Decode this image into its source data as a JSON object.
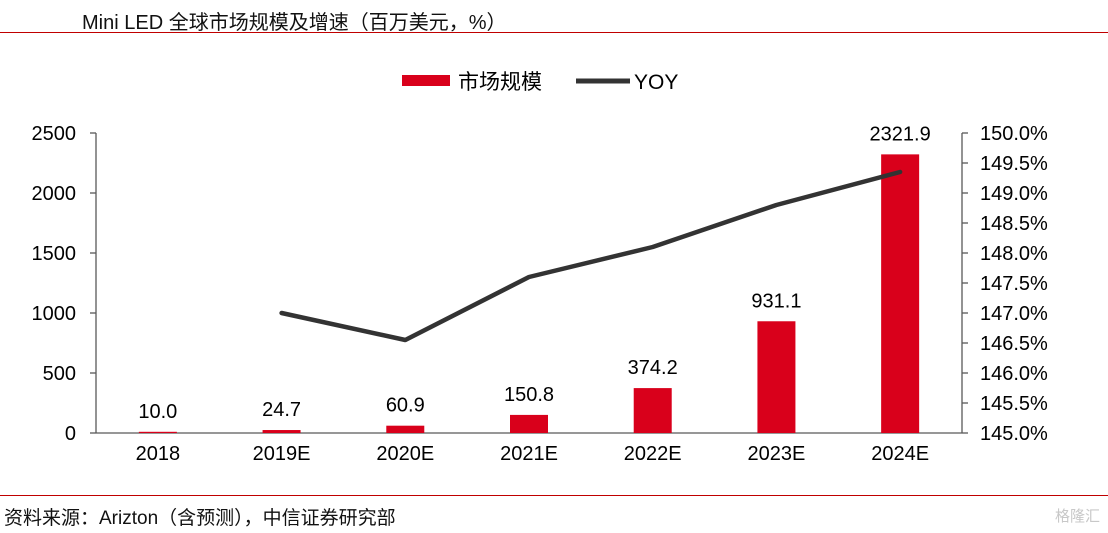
{
  "title": "Mini LED 全球市场规模及增速（百万美元，%）",
  "source": "资料来源：Arizton（含预测），中信证券研究部",
  "watermark": "格隆汇",
  "colors": {
    "bar": "#d9001b",
    "line": "#333333",
    "rule": "#c00000"
  },
  "chart_data": {
    "type": "bar",
    "categories": [
      "2018",
      "2019E",
      "2020E",
      "2021E",
      "2022E",
      "2023E",
      "2024E"
    ],
    "series": [
      {
        "name": "市场规模",
        "type": "bar",
        "axis": "left",
        "values": [
          10.0,
          24.7,
          60.9,
          150.8,
          374.2,
          931.1,
          2321.9
        ],
        "labels": [
          "10.0",
          "24.7",
          "60.9",
          "150.8",
          "374.2",
          "931.1",
          "2321.9"
        ]
      },
      {
        "name": "YOY",
        "type": "line",
        "axis": "right",
        "values": [
          null,
          147.0,
          146.55,
          147.6,
          148.1,
          148.8,
          149.35
        ]
      }
    ],
    "y_left": {
      "min": 0,
      "max": 2500,
      "ticks": [
        "0",
        "500",
        "1000",
        "1500",
        "2000",
        "2500"
      ]
    },
    "y_right": {
      "min": 145.0,
      "max": 150.0,
      "ticks": [
        "145.0%",
        "145.5%",
        "146.0%",
        "146.5%",
        "147.0%",
        "147.5%",
        "148.0%",
        "148.5%",
        "149.0%",
        "149.5%",
        "150.0%"
      ]
    },
    "legend_position": "top-center",
    "grid": false
  }
}
